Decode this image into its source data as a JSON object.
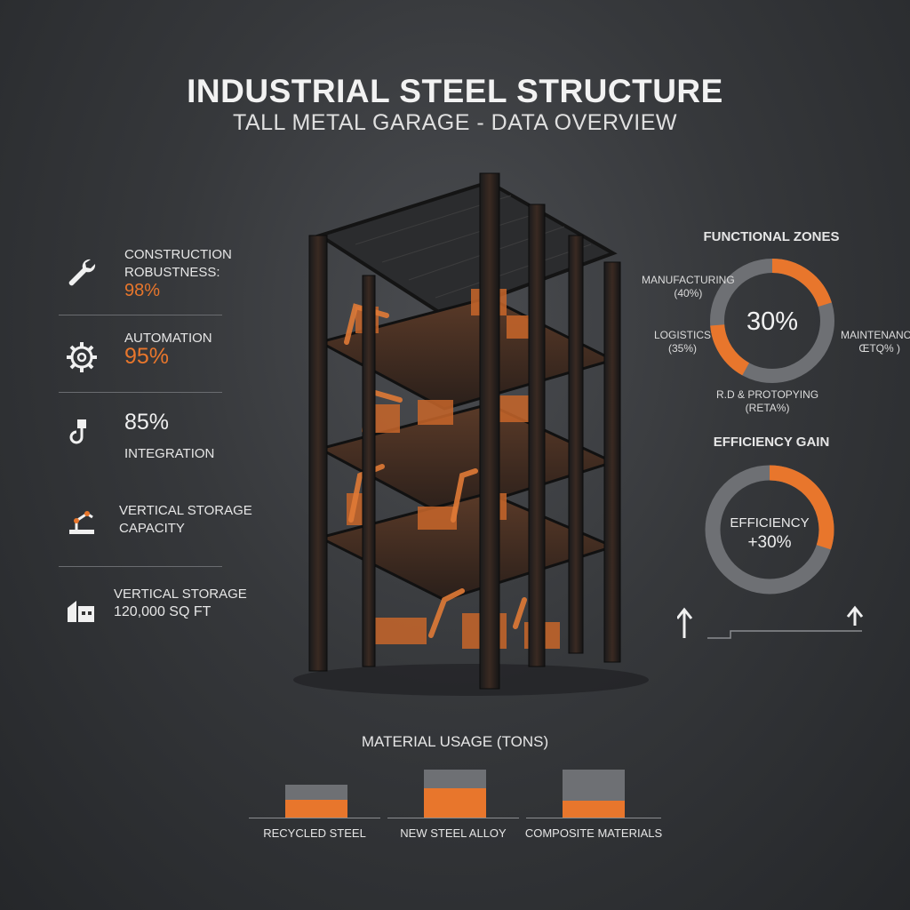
{
  "header": {
    "title": "INDUSTRIAL STEEL STRUCTURE",
    "subtitle": "TALL METAL GARAGE - DATA OVERVIEW"
  },
  "stats": [
    {
      "icon": "wrench-icon",
      "label_line1": "CONSTRUCTION",
      "label_line2": "ROBUSTNESS:",
      "value": "98%"
    },
    {
      "icon": "gear-icon",
      "label": "AUTOMATION",
      "value": "95%"
    },
    {
      "icon": "crane-hook-icon",
      "value": "85%",
      "label": "INTEGRATION"
    },
    {
      "icon": "robot-arm-icon",
      "label_line1": "VERTICAL STORAGE",
      "label_line2": "CAPACITY"
    },
    {
      "icon": "building-icon",
      "label": "VERTICAL STORAGE",
      "value": "120,000 SQ FT"
    }
  ],
  "functional_zones": {
    "title": "FUNCTIONAL ZONES",
    "center_value": "30%",
    "labels": {
      "manufacturing": "MANUFACTURING",
      "manufacturing_pct": "(40%)",
      "logistics": "LOGISTICS",
      "logistics_pct": "(35%)",
      "maintenance": "MAINTENANCE",
      "maintenance_pct": "ŒΤQ% )",
      "rd": "R.D & PROTOPYING",
      "rd_pct": "(RETA%)"
    },
    "fractions": {
      "orange": 0.45,
      "gray": 0.55
    },
    "colors": {
      "accent": "#e8762c",
      "track": "#6e7074"
    }
  },
  "efficiency": {
    "title": "EFFICIENCY GAIN",
    "label": "EFFICIENCY",
    "value": "+30%",
    "fraction": 0.3
  },
  "material_usage": {
    "title": "MATERIAL USAGE (TONS)",
    "bars": [
      {
        "label": "RECYCLED STEEL",
        "orange_fraction": 0.55
      },
      {
        "label": "NEW STEEL ALLOY",
        "orange_fraction": 0.62
      },
      {
        "label": "COMPOSITE MATERIALS",
        "orange_fraction": 0.35
      }
    ]
  }
}
